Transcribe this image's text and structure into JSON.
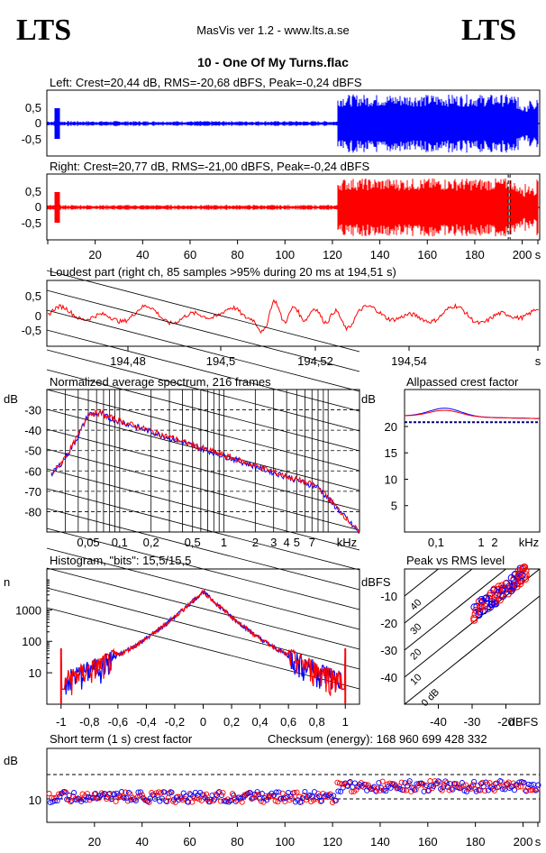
{
  "header": {
    "logo_left": "LTS",
    "logo_right": "LTS",
    "app_title": "MasVis ver 1.2 - www.lts.a.se",
    "track_title": "10 - One Of My Turns.flac"
  },
  "colors": {
    "left": "#0000ff",
    "right": "#ff0000",
    "grid": "#000000"
  },
  "chart_data": [
    {
      "id": "left",
      "type": "line",
      "title": "Left: Crest=20,44 dB, RMS=-20,68 dBFS, Peak=-0,24 dBFS",
      "yticks": [
        "0,5",
        "0",
        "-0,5"
      ],
      "x_unit": "s",
      "duration": 207,
      "loud_start": 122,
      "loud_end": 207
    },
    {
      "id": "right",
      "type": "line",
      "title": "Right: Crest=20,77 dB, RMS=-21,00 dBFS, Peak=-0,24 dBFS",
      "yticks": [
        "0,5",
        "0",
        "-0,5"
      ],
      "xticks": [
        "20",
        "40",
        "60",
        "80",
        "100",
        "120",
        "140",
        "160",
        "180",
        "200",
        "s"
      ],
      "marker": 194.51
    },
    {
      "id": "loudest",
      "type": "line",
      "title": "Loudest part (right ch, 85 samples >95% during 20 ms at 194,51 s)",
      "yticks": [
        "0,5",
        "0",
        "-0,5"
      ],
      "xticks": [
        "194,48",
        "194,5",
        "194,52",
        "194,54",
        "s"
      ]
    },
    {
      "id": "spectrum",
      "type": "line",
      "title": "Normalized average spectrum, 216 frames",
      "ylabel": "dB",
      "yticks": [
        "-30",
        "-40",
        "-50",
        "-60",
        "-70",
        "-80"
      ],
      "xticks": [
        "0,05",
        "0,1",
        "0,2",
        "0,5",
        "1",
        "2",
        "3",
        "4",
        "5",
        "7",
        "kHz"
      ]
    },
    {
      "id": "apcrest",
      "type": "line",
      "title": "Allpassed crest factor",
      "ylabel": "dB",
      "yticks": [
        "20",
        "15",
        "10",
        "5"
      ],
      "xticks": [
        "0,1",
        "1",
        "2",
        "kHz"
      ],
      "ylim": [
        0,
        27
      ],
      "reference": 20.8
    },
    {
      "id": "histogram",
      "type": "line",
      "title": "Histogram, \"bits\": 15,5/15,5",
      "ylabel": "n",
      "yticks": [
        "1000",
        "100",
        "10"
      ],
      "xticks": [
        "-1",
        "-0,8",
        "-0,6",
        "-0,4",
        "-0,2",
        "0",
        "0,2",
        "0,4",
        "0,6",
        "0,8",
        "1"
      ]
    },
    {
      "id": "peakrms",
      "type": "scatter",
      "title": "Peak vs RMS level",
      "ylabel": "dBFS",
      "yticks": [
        "-10",
        "-20",
        "-30",
        "-40"
      ],
      "xticks": [
        "-40",
        "-30",
        "-20",
        "dBFS"
      ],
      "diag_labels": [
        "40",
        "30",
        "20",
        "10",
        "0 dB"
      ]
    },
    {
      "id": "shortcrest",
      "type": "scatter",
      "title": "Short term (1 s) crest factor",
      "checksum": "Checksum (energy):   168 960 699 428 332",
      "ylabel": "dB",
      "yticks": [
        "10"
      ],
      "xticks": [
        "20",
        "40",
        "60",
        "80",
        "100",
        "120",
        "140",
        "160",
        "180",
        "200",
        "s"
      ]
    }
  ]
}
